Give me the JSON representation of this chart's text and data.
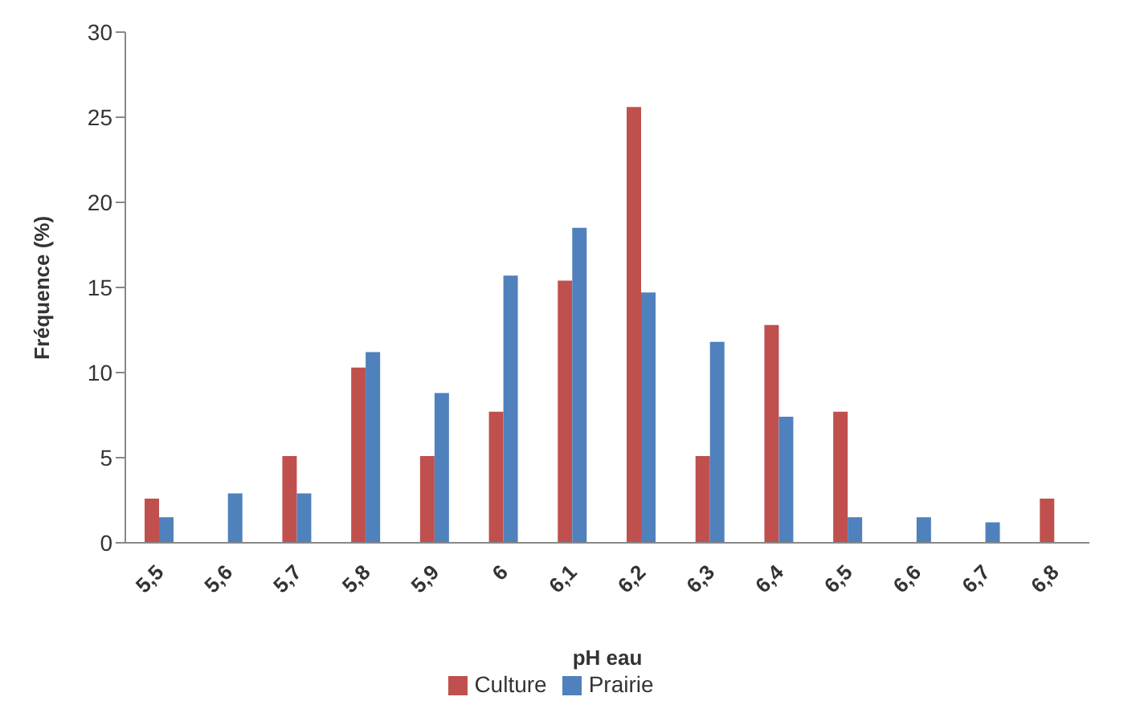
{
  "chart_data": {
    "type": "bar",
    "xlabel": "pH eau",
    "ylabel": "Fréquence (%)",
    "categories": [
      "5,5",
      "5,6",
      "5,7",
      "5,8",
      "5,9",
      "6",
      "6,1",
      "6,2",
      "6,3",
      "6,4",
      "6,5",
      "6,6",
      "6,7",
      "6,8"
    ],
    "series": [
      {
        "name": "Culture",
        "color": "#c0504d",
        "values": [
          2.6,
          0,
          5.1,
          10.3,
          5.1,
          7.7,
          15.4,
          25.6,
          5.1,
          12.8,
          7.7,
          0,
          0,
          2.6
        ]
      },
      {
        "name": "Prairie",
        "color": "#4f81bd",
        "values": [
          1.5,
          2.9,
          2.9,
          11.2,
          8.8,
          15.7,
          18.5,
          14.7,
          11.8,
          7.4,
          1.5,
          1.5,
          1.2,
          0
        ]
      }
    ],
    "ylim": [
      0,
      30
    ],
    "yticks": [
      0,
      5,
      10,
      15,
      20,
      25,
      30
    ],
    "grid": false,
    "legend": "bottom"
  }
}
